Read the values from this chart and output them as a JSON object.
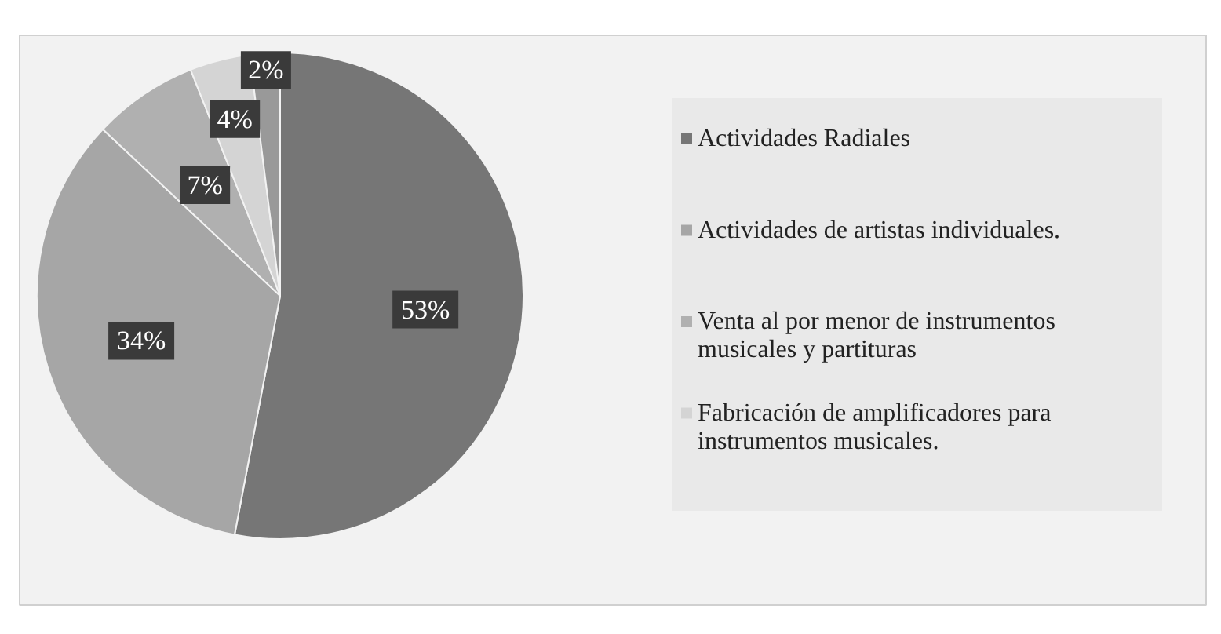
{
  "chart_data": {
    "type": "pie",
    "categories": [
      "Actividades Radiales",
      "Actividades de artistas individuales.",
      "Venta al por menor de instrumentos musicales y partituras",
      "Fabricación de amplificadores para instrumentos musicales.",
      null
    ],
    "values": [
      53,
      34,
      7,
      4,
      2
    ],
    "colors": [
      "#767676",
      "#a6a6a6",
      "#b0b0b0",
      "#d4d4d4",
      "#999999"
    ],
    "value_labels": [
      "53%",
      "34%",
      "7%",
      "4%",
      "2%"
    ],
    "legend": "right"
  }
}
